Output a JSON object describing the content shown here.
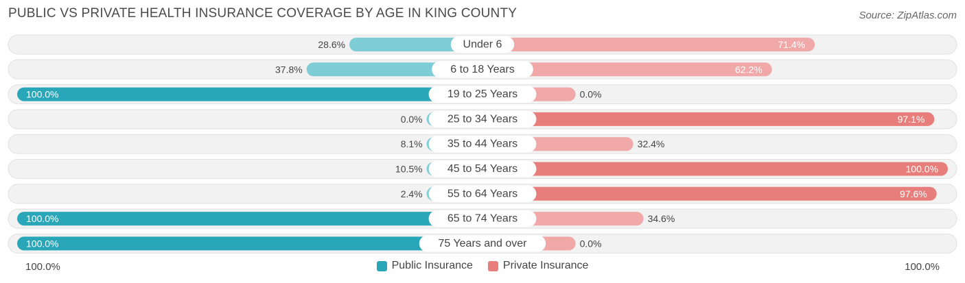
{
  "title": "PUBLIC VS PRIVATE HEALTH INSURANCE COVERAGE BY AGE IN KING COUNTY",
  "source": "Source: ZipAtlas.com",
  "axis": {
    "left_label": "100.0%",
    "right_label": "100.0%"
  },
  "legend": {
    "public_label": "Public Insurance",
    "private_label": "Private Insurance"
  },
  "colors": {
    "public_light": "#7ecdd6",
    "public_dark": "#2aa6b9",
    "private_light": "#f0a8a8",
    "private_dark": "#e87e7b",
    "row_bg": "#f2f2f2",
    "row_border": "#e0e0e0"
  },
  "chart_data": {
    "type": "bar",
    "orientation": "horizontal-diverging",
    "title": "PUBLIC VS PRIVATE HEALTH INSURANCE COVERAGE BY AGE IN KING COUNTY",
    "categories": [
      "Under 6",
      "6 to 18 Years",
      "19 to 25 Years",
      "25 to 34 Years",
      "35 to 44 Years",
      "45 to 54 Years",
      "55 to 64 Years",
      "65 to 74 Years",
      "75 Years and over"
    ],
    "series": [
      {
        "name": "Public Insurance",
        "values": [
          28.6,
          37.8,
          100.0,
          0.0,
          8.1,
          10.5,
          2.4,
          100.0,
          100.0
        ],
        "labels": [
          "28.6%",
          "37.8%",
          "100.0%",
          "0.0%",
          "8.1%",
          "10.5%",
          "2.4%",
          "100.0%",
          "100.0%"
        ]
      },
      {
        "name": "Private Insurance",
        "values": [
          71.4,
          62.2,
          0.0,
          97.1,
          32.4,
          100.0,
          97.6,
          34.6,
          0.0
        ],
        "labels": [
          "71.4%",
          "62.2%",
          "0.0%",
          "97.1%",
          "32.4%",
          "100.0%",
          "97.6%",
          "34.6%",
          "0.0%"
        ]
      }
    ],
    "xlim": [
      0,
      100
    ]
  }
}
